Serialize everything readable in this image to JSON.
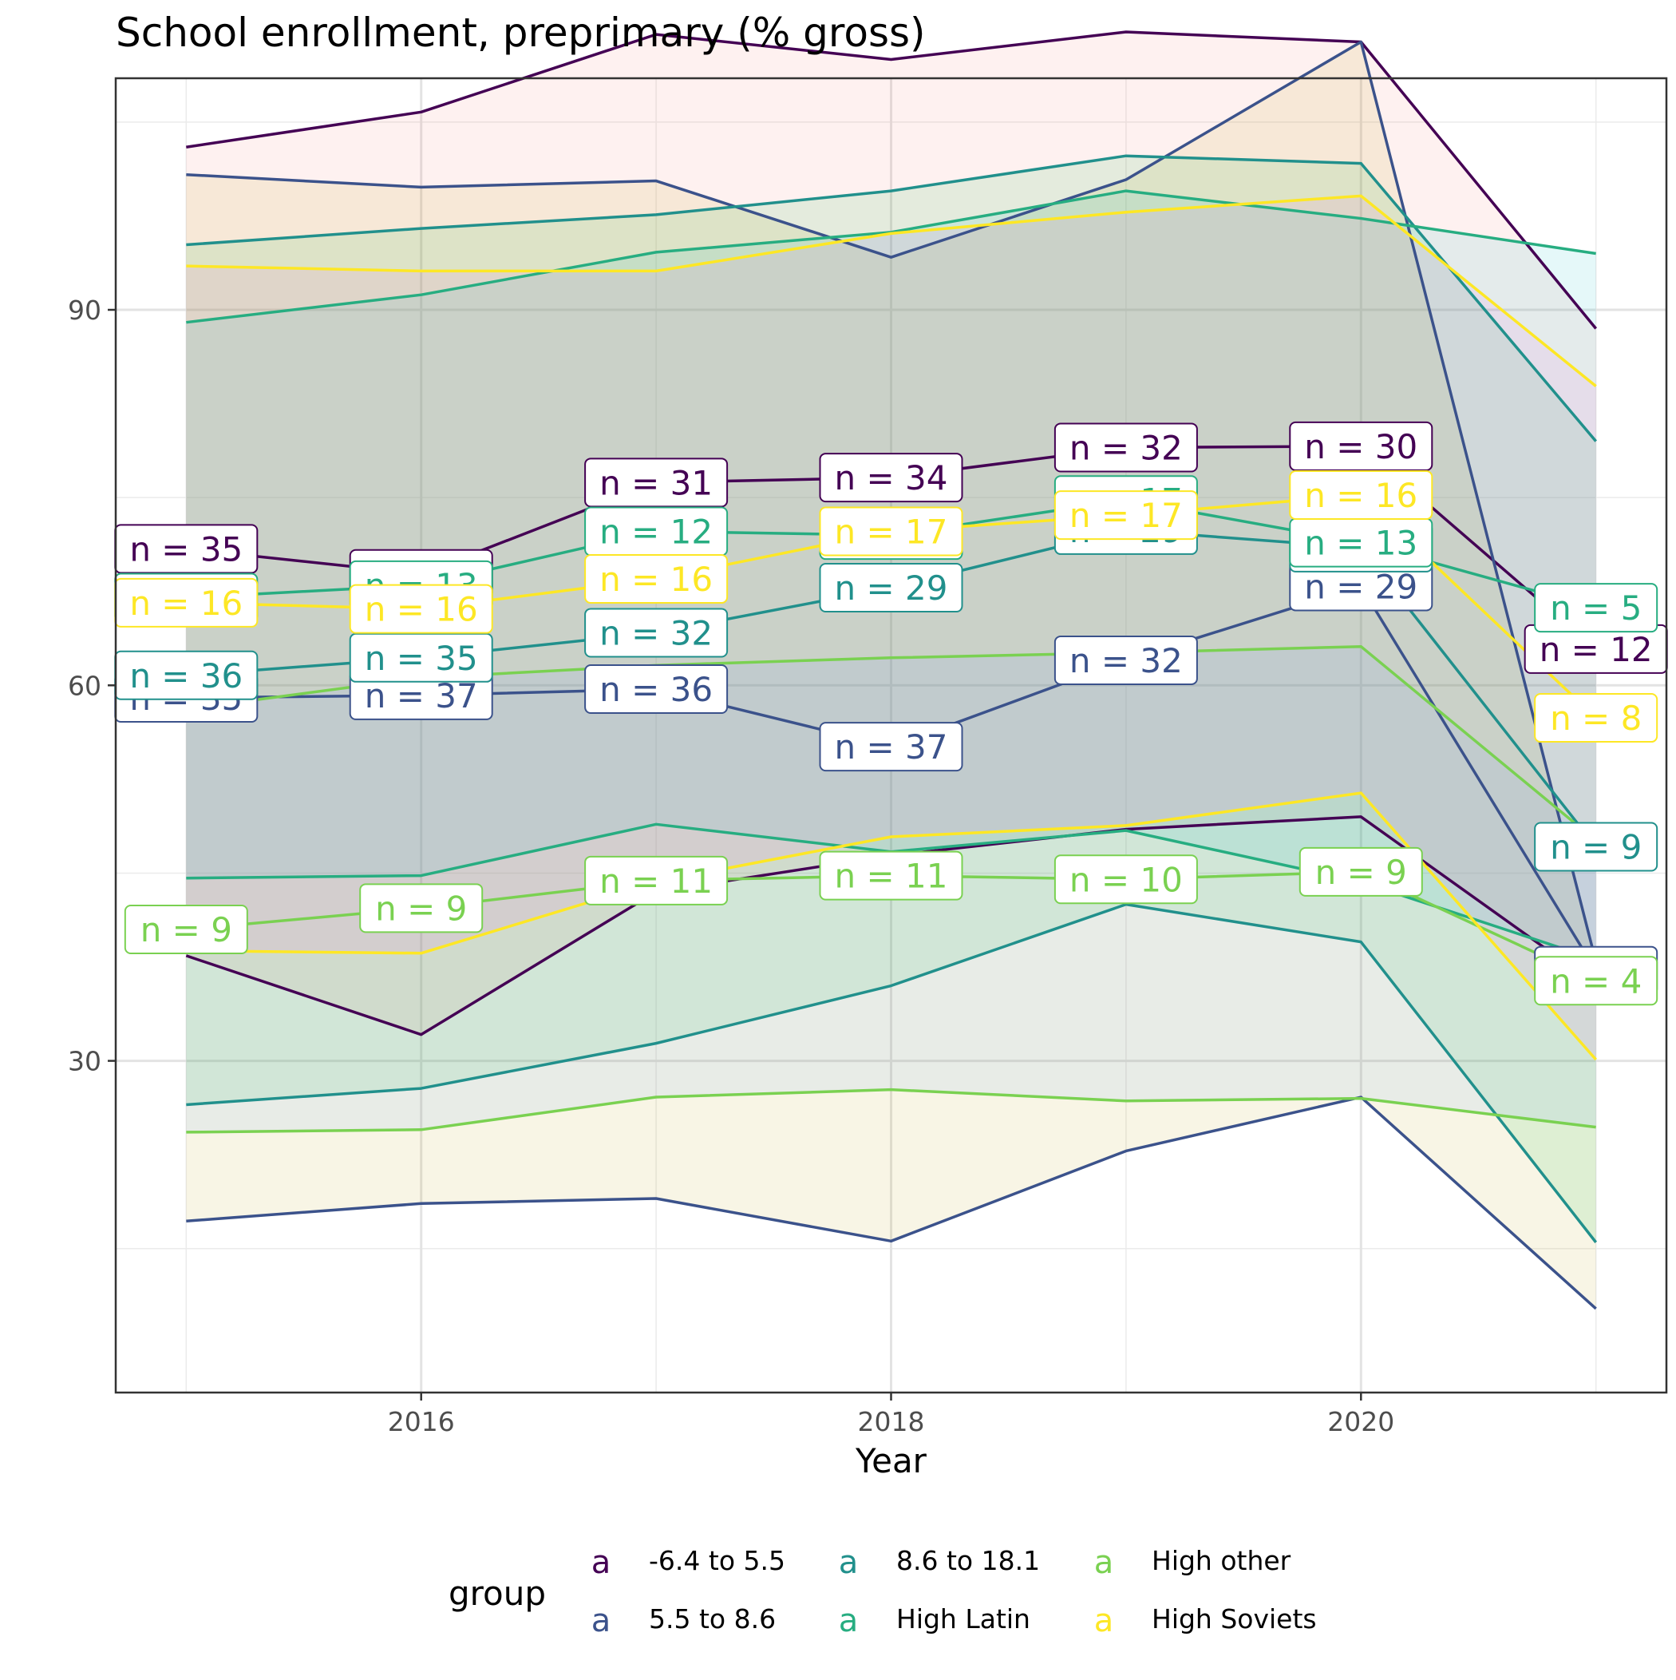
{
  "chart_data": {
    "type": "area",
    "title": "School enrollment, preprimary (% gross)",
    "xlabel": "Year",
    "ylabel": "",
    "x": [
      2015,
      2016,
      2017,
      2018,
      2019,
      2020,
      2021
    ],
    "x_ticks": [
      2016,
      2018,
      2020
    ],
    "y_ticks": [
      30,
      60,
      90
    ],
    "xlim": [
      2014.7,
      2021.3
    ],
    "ylim": [
      3.5,
      108.5
    ],
    "grid": true,
    "legend_position": "bottom",
    "legend_title": "group",
    "legend_glyph": "a",
    "series": [
      {
        "name": "-6.4 to 5.5",
        "color": "#440154",
        "fill": "#F8766D",
        "upper": [
          103,
          105.8,
          112,
          110,
          112.2,
          111.4,
          88.5
        ],
        "mean": [
          70.9,
          68.9,
          76.2,
          76.6,
          79,
          79.1,
          62.9
        ],
        "lower": [
          38.4,
          32.1,
          43.5,
          46.4,
          48.5,
          49.5,
          36.1
        ],
        "counts": [
          35,
          35,
          31,
          34,
          32,
          30,
          12
        ]
      },
      {
        "name": "5.5 to 8.6",
        "color": "#3B528B",
        "fill": "#B79F00",
        "upper": [
          100.8,
          99.8,
          100.3,
          94.2,
          100.4,
          111.4,
          37.9
        ],
        "mean": [
          59,
          59.2,
          59.7,
          55.1,
          62,
          67.9,
          37.2
        ],
        "lower": [
          17.2,
          18.6,
          19,
          15.6,
          22.8,
          27.1,
          10.2
        ],
        "counts": [
          35,
          37,
          36,
          37,
          32,
          29,
          5
        ]
      },
      {
        "name": "8.6 to 18.1",
        "color": "#21908C",
        "fill": "#00BA38",
        "upper": [
          95.2,
          96.5,
          97.6,
          99.5,
          102.3,
          101.7,
          79.5
        ],
        "mean": [
          60.8,
          62.2,
          64.2,
          67.8,
          72.4,
          71,
          47.1
        ],
        "lower": [
          26.5,
          27.8,
          31.4,
          36,
          42.5,
          39.5,
          15.5
        ],
        "counts": [
          36,
          35,
          32,
          29,
          29,
          29,
          9
        ]
      },
      {
        "name": "High Latin",
        "color": "#27AD81",
        "fill": "#00BFC4",
        "upper": [
          89,
          91.2,
          94.6,
          96.2,
          99.5,
          97.3,
          94.5
        ],
        "mean": [
          67,
          68,
          72.3,
          72,
          74.8,
          71.4,
          66.2
        ],
        "lower": [
          44.6,
          44.8,
          48.9,
          46.7,
          48.4,
          44.3,
          38.1
        ],
        "counts": [
          16,
          13,
          12,
          17,
          17,
          13,
          5
        ]
      },
      {
        "name": "High other",
        "color": "#7AD151",
        "fill": "#619CFF",
        "upper": [
          58.1,
          60.6,
          61.6,
          62.2,
          62.6,
          63.1,
          47.6
        ],
        "mean": [
          40.5,
          42.2,
          44.4,
          44.8,
          44.5,
          45.1,
          36.4
        ],
        "lower": [
          24.3,
          24.5,
          27.1,
          27.7,
          26.8,
          27,
          24.7
        ],
        "counts": [
          9,
          9,
          11,
          11,
          10,
          9,
          4
        ]
      },
      {
        "name": "High Soviets",
        "color": "#FDE725",
        "fill": "#F564E3",
        "upper": [
          93.5,
          93.1,
          93.1,
          96.1,
          97.8,
          99.1,
          83.9
        ],
        "mean": [
          66.6,
          66.1,
          68.5,
          72.3,
          73.6,
          75.2,
          57.4
        ],
        "lower": [
          38.8,
          38.6,
          44.3,
          47.9,
          48.8,
          51.4,
          30.1
        ],
        "counts": [
          16,
          16,
          16,
          17,
          17,
          16,
          8
        ]
      }
    ]
  }
}
